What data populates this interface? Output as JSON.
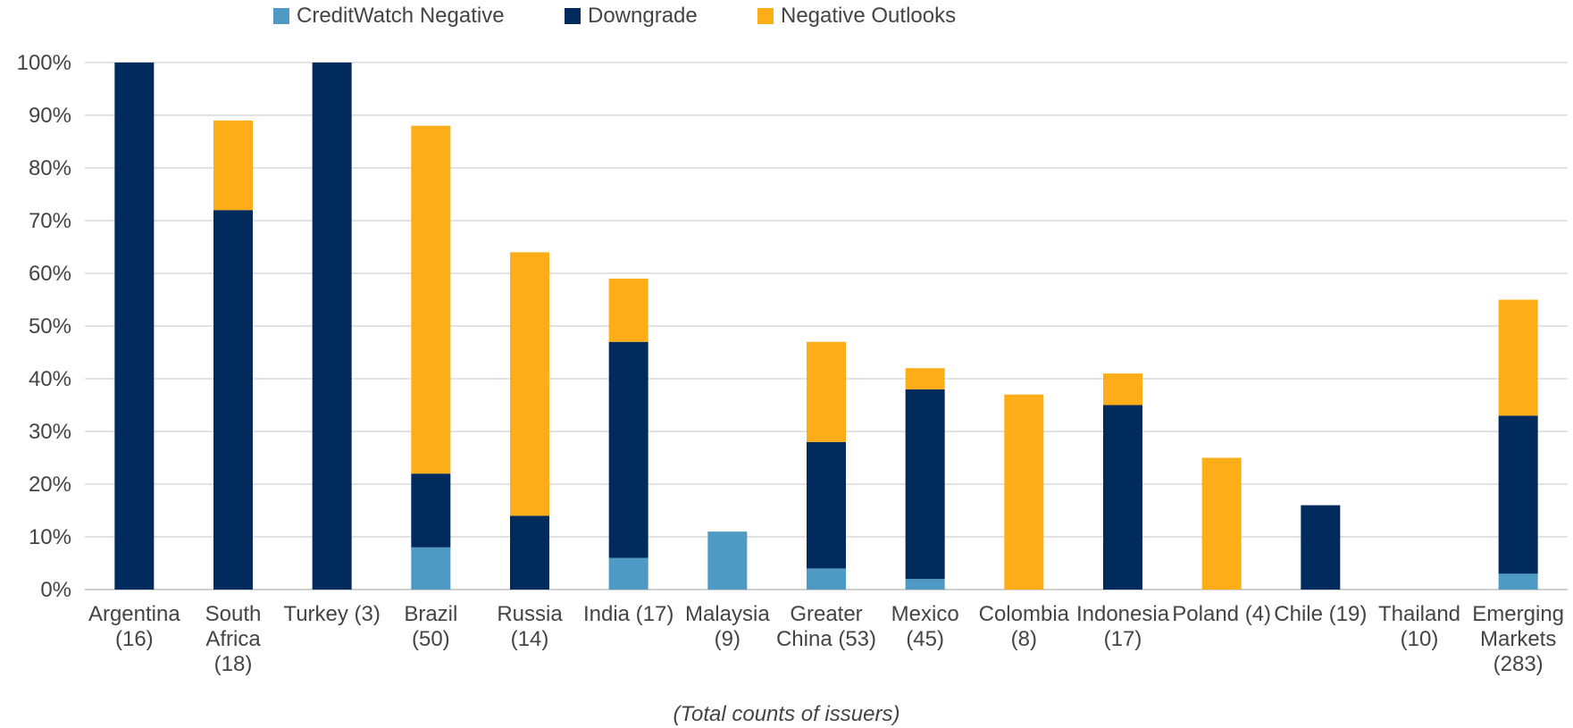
{
  "chart_data": {
    "type": "bar",
    "stacked": true,
    "note": "(Total counts of issuers)",
    "categories": [
      "Argentina\n(16)",
      "South\nAfrica\n(18)",
      "Turkey (3)",
      "Brazil\n(50)",
      "Russia\n(14)",
      "India (17)",
      "Malaysia\n(9)",
      "Greater\nChina (53)",
      "Mexico\n(45)",
      "Colombia\n(8)",
      "Indonesia\n(17)",
      "Poland (4)",
      "Chile (19)",
      "Thailand\n(10)",
      "Emerging\nMarkets\n(283)"
    ],
    "series": [
      {
        "name": "CreditWatch Negative",
        "color": "#4f9ac4",
        "values": [
          0,
          0,
          0,
          8,
          0,
          6,
          11,
          4,
          2,
          0,
          0,
          0,
          0,
          0,
          3
        ]
      },
      {
        "name": "Downgrade",
        "color": "#002b5c",
        "values": [
          100,
          72,
          100,
          14,
          14,
          41,
          0,
          24,
          36,
          0,
          35,
          0,
          16,
          0,
          30
        ]
      },
      {
        "name": "Negative Outlooks",
        "color": "#fdad18",
        "values": [
          0,
          17,
          0,
          66,
          50,
          12,
          0,
          19,
          4,
          37,
          6,
          25,
          0,
          0,
          22
        ]
      }
    ],
    "ylim": [
      0,
      100
    ],
    "yticks": [
      "0%",
      "10%",
      "20%",
      "30%",
      "40%",
      "50%",
      "60%",
      "70%",
      "80%",
      "90%",
      "100%"
    ],
    "grid": true,
    "legend_position": "top"
  }
}
